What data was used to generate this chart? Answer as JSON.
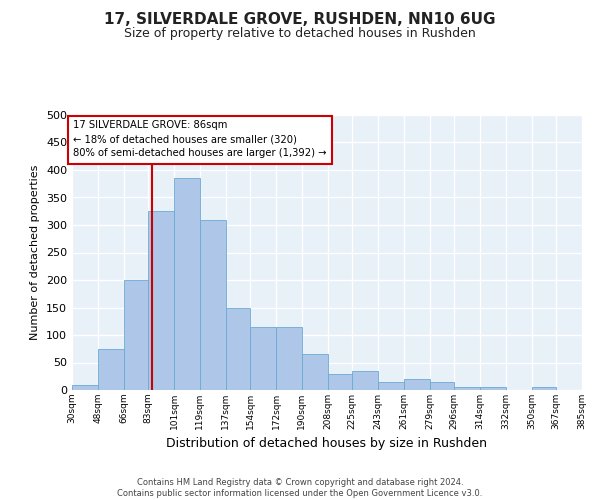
{
  "title": "17, SILVERDALE GROVE, RUSHDEN, NN10 6UG",
  "subtitle": "Size of property relative to detached houses in Rushden",
  "xlabel": "Distribution of detached houses by size in Rushden",
  "ylabel": "Number of detached properties",
  "bar_color": "#aec6e8",
  "bar_edge_color": "#6aaad4",
  "background_color": "#e8f0f8",
  "grid_color": "#ffffff",
  "vline_value": 86,
  "vline_color": "#cc0000",
  "annotation_text": "17 SILVERDALE GROVE: 86sqm\n← 18% of detached houses are smaller (320)\n80% of semi-detached houses are larger (1,392) →",
  "annotation_box_color": "#cc0000",
  "bin_edges": [
    30,
    48,
    66,
    83,
    101,
    119,
    137,
    154,
    172,
    190,
    208,
    225,
    243,
    261,
    279,
    296,
    314,
    332,
    350,
    367,
    385
  ],
  "bar_heights": [
    10,
    75,
    200,
    325,
    385,
    310,
    150,
    115,
    115,
    65,
    30,
    35,
    15,
    20,
    15,
    5,
    5,
    0,
    5,
    0
  ],
  "ylim": [
    0,
    500
  ],
  "yticks": [
    0,
    50,
    100,
    150,
    200,
    250,
    300,
    350,
    400,
    450,
    500
  ],
  "footnote": "Contains HM Land Registry data © Crown copyright and database right 2024.\nContains public sector information licensed under the Open Government Licence v3.0.",
  "tick_labels": [
    "30sqm",
    "48sqm",
    "66sqm",
    "83sqm",
    "101sqm",
    "119sqm",
    "137sqm",
    "154sqm",
    "172sqm",
    "190sqm",
    "208sqm",
    "225sqm",
    "243sqm",
    "261sqm",
    "279sqm",
    "296sqm",
    "314sqm",
    "332sqm",
    "350sqm",
    "367sqm",
    "385sqm"
  ]
}
